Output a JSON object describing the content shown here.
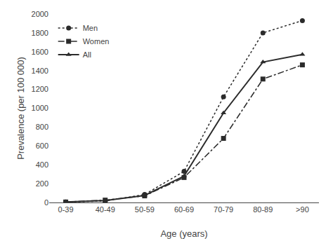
{
  "chart_data": {
    "type": "line",
    "xlabel": "Age (years)",
    "ylabel": "Prevalence (per 100 000)",
    "categories": [
      "0-39",
      "40-49",
      "50-59",
      "60-69",
      "70-79",
      "80-89",
      ">90"
    ],
    "series": [
      {
        "name": "Men",
        "color": "#2b2b2b",
        "marker": "circle",
        "line_style": "dotted",
        "values": [
          5,
          15,
          85,
          330,
          1120,
          1800,
          1930
        ]
      },
      {
        "name": "Women",
        "color": "#2b2b2b",
        "marker": "square",
        "line_style": "dashdot",
        "values": [
          5,
          25,
          70,
          265,
          680,
          1310,
          1460
        ]
      },
      {
        "name": "All",
        "color": "#2b2b2b",
        "marker": "triangle",
        "line_style": "solid",
        "values": [
          5,
          20,
          75,
          280,
          950,
          1490,
          1570
        ]
      }
    ],
    "ylim": [
      0,
      2000
    ],
    "yticks": [
      0,
      200,
      400,
      600,
      800,
      1000,
      1200,
      1400,
      1600,
      1800,
      2000
    ],
    "grid": false,
    "legend": "upper left"
  }
}
